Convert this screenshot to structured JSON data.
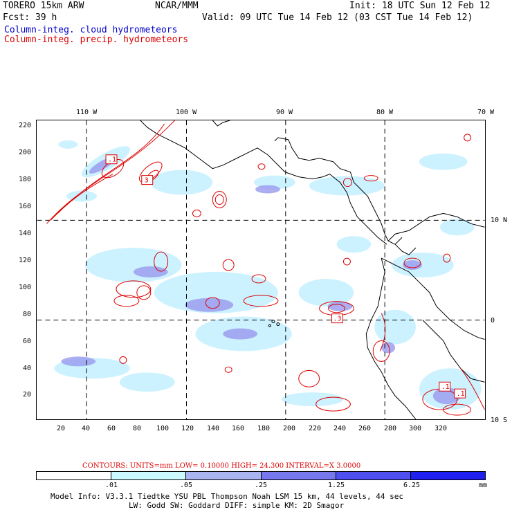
{
  "header": {
    "model": "TORERO  15km ARW",
    "center": "NCAR/MMM",
    "init": "Init: 18 UTC Sun 12 Feb 12",
    "fcst": "Fcst:   39 h",
    "valid": "Valid: 09 UTC Tue 14 Feb 12 (03 CST Tue 14 Feb 12)",
    "field_blue": "Column-integ. cloud hydrometeors",
    "field_red": "Column-integ. precip. hydrometeors"
  },
  "map": {
    "lon_labels": [
      "110 W",
      "100 W",
      "90 W",
      "80 W",
      "70 W"
    ],
    "lat_labels": [
      "10 N",
      "0",
      "10 S"
    ],
    "x_ticks": [
      "20",
      "40",
      "60",
      "80",
      "100",
      "120",
      "140",
      "160",
      "180",
      "200",
      "220",
      "240",
      "260",
      "280",
      "300",
      "320"
    ],
    "y_ticks": [
      "220",
      "200",
      "180",
      "160",
      "140",
      "120",
      "100",
      "80",
      "60",
      "40",
      "20"
    ],
    "box_labels": [
      ".1",
      "3",
      ".3",
      ".1",
      ".1"
    ],
    "colors": {
      "land": "#000000",
      "cloud_light": "#ccf2ff",
      "cloud_mid": "#9999ee",
      "precip": "#dd0000"
    }
  },
  "contour_info": "CONTOURS:  UNITS=mm  LOW= 0.10000      HIGH=  24.300      INTERVAL=X  3.0000",
  "legend": {
    "labels": [
      ".01",
      ".05",
      ".25",
      "1.25",
      "6.25",
      "mm"
    ],
    "colors": [
      "#ffffff",
      "#ccf8ff",
      "#aab4f0",
      "#7777ee",
      "#5050f0",
      "#2020f0"
    ]
  },
  "footer": {
    "line1": "Model Info: V3.3.1    Tiedtke YSU PBL  Thompson     Noah LSM  15 km,   44 levels,   44 sec",
    "line2": "LW: Godd SW: Goddard DIFF: simple KM: 2D Smagor"
  }
}
